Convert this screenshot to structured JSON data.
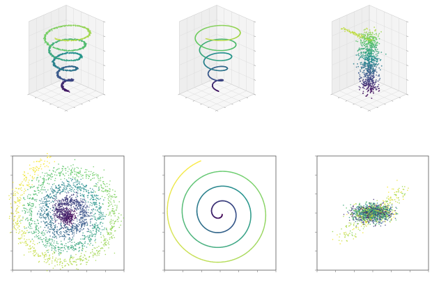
{
  "chart_data": [
    {
      "type": "scatter",
      "projection": "3d",
      "shape": "conical-helix",
      "noise": 0.35,
      "xlim": [
        -10,
        10
      ],
      "ylim": [
        -10,
        10
      ],
      "zlim": [
        0,
        1
      ],
      "colormap": [
        "#440154",
        "#3b528b",
        "#21918c",
        "#5ec962",
        "#fde725"
      ],
      "grid": true
    },
    {
      "type": "scatter",
      "projection": "3d",
      "shape": "conical-helix",
      "noise": 0.0,
      "xlim": [
        -10,
        10
      ],
      "ylim": [
        -10,
        10
      ],
      "zlim": [
        0,
        1
      ],
      "colormap": [
        "#440154",
        "#3b528b",
        "#21918c",
        "#5ec962",
        "#fde725"
      ],
      "grid": true
    },
    {
      "type": "scatter",
      "projection": "3d",
      "shape": "vertical-cluster",
      "noise": 1.0,
      "xlim": [
        -4,
        4
      ],
      "ylim": [
        -4,
        4
      ],
      "zlim": [
        0,
        1
      ],
      "colormap": [
        "#440154",
        "#3b528b",
        "#21918c",
        "#5ec962",
        "#fde725"
      ],
      "grid": true
    },
    {
      "type": "scatter",
      "projection": "2d",
      "shape": "spiral",
      "noise": 0.8,
      "xlim": [
        -12,
        12
      ],
      "ylim": [
        -12,
        12
      ],
      "colormap": [
        "#440154",
        "#3b528b",
        "#21918c",
        "#5ec962",
        "#fde725"
      ],
      "grid": false
    },
    {
      "type": "scatter",
      "projection": "2d",
      "shape": "spiral",
      "noise": 0.0,
      "xlim": [
        -12,
        12
      ],
      "ylim": [
        -12,
        12
      ],
      "colormap": [
        "#440154",
        "#3b528b",
        "#21918c",
        "#5ec962",
        "#fde725"
      ],
      "grid": false
    },
    {
      "type": "scatter",
      "projection": "2d",
      "shape": "gaussian-blob",
      "noise": 1.0,
      "xlim": [
        -4,
        4
      ],
      "ylim": [
        -4,
        4
      ],
      "colormap": [
        "#440154",
        "#3b528b",
        "#21918c",
        "#5ec962",
        "#fde725"
      ],
      "grid": false
    }
  ]
}
